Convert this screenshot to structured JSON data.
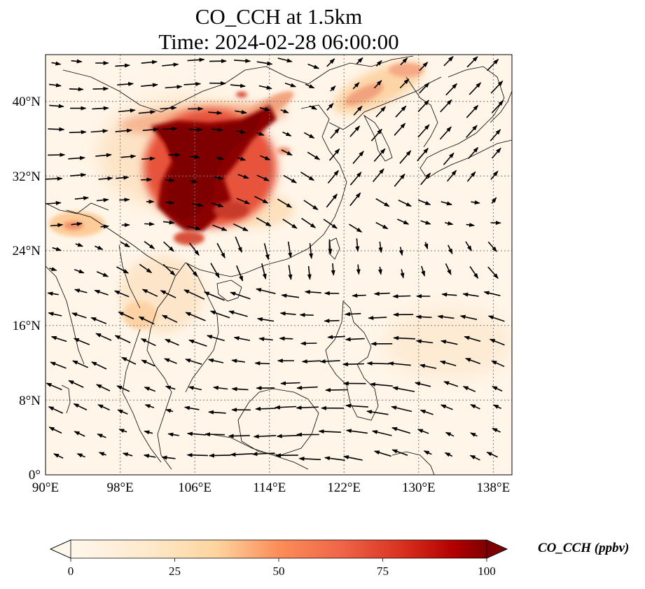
{
  "figure": {
    "title_line1": "CO_CCH at 1.5km",
    "title_line2": "Time: 2024-02-28 06:00:00"
  },
  "map": {
    "lon_ticks": [
      "90°E",
      "98°E",
      "106°E",
      "114°E",
      "122°E",
      "130°E",
      "138°E"
    ],
    "lat_ticks": [
      "0°",
      "8°N",
      "16°N",
      "24°N",
      "32°N",
      "40°N"
    ],
    "extent": {
      "lon": [
        90,
        140
      ],
      "lat": [
        0,
        45
      ]
    },
    "gridlines": true,
    "wind_vectors": true
  },
  "colorbar": {
    "label": "CO_CCH (ppbv)",
    "ticks": [
      "0",
      "25",
      "50",
      "75",
      "100"
    ],
    "range": [
      0,
      100
    ],
    "extend": "both",
    "colormap": "OrRd",
    "colors": {
      "low": "#fff7ec",
      "light": "#fdd49e",
      "mid": "#fc8d59",
      "high": "#d7301f",
      "max": "#7f0000"
    }
  }
}
